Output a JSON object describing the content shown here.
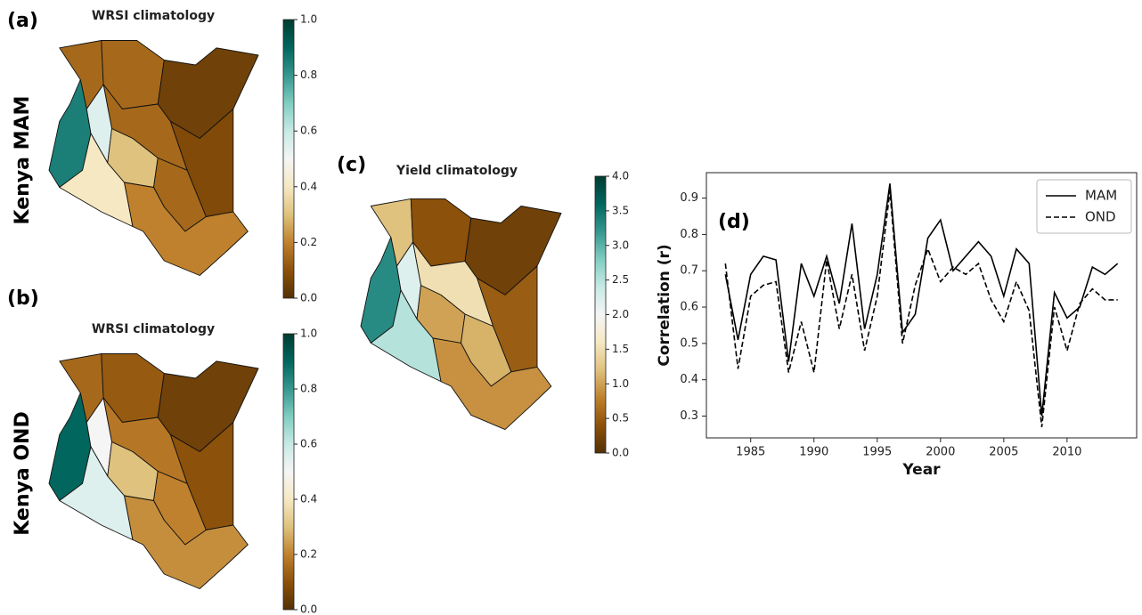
{
  "chart_data": [
    {
      "type": "map",
      "panel_label": "(a)",
      "row_label": "Kenya MAM",
      "title": "WRSI climatology",
      "values": [
        0.15,
        0.15,
        0.05,
        0.08,
        0.15,
        0.85,
        0.55,
        0.4,
        0.3,
        0.15,
        0.2
      ],
      "colorbar_lim": [
        0,
        1
      ],
      "colorbar_ticks": [
        {
          "value": 0,
          "label": "0.0"
        },
        0.2,
        0.4,
        0.6,
        0.8,
        {
          "value": 1,
          "label": "1.0"
        }
      ],
      "colormap": [
        "#543005",
        "#8c510a",
        "#bf812d",
        "#dfc27d",
        "#f6e8c3",
        "#f5f5f5",
        "#c7eae5",
        "#80cdc1",
        "#35978f",
        "#01665e",
        "#003c30"
      ]
    },
    {
      "type": "map",
      "panel_label": "(b)",
      "row_label": "Kenya OND",
      "title": "WRSI climatology",
      "values": [
        0.15,
        0.12,
        0.05,
        0.1,
        0.18,
        0.9,
        0.5,
        0.55,
        0.3,
        0.2,
        0.22
      ],
      "colorbar_lim": [
        0,
        1
      ],
      "colorbar_ticks": [
        {
          "value": 0,
          "label": "0.0"
        },
        0.2,
        0.4,
        0.6,
        0.8,
        {
          "value": 1,
          "label": "1.0"
        }
      ],
      "colormap": [
        "#543005",
        "#8c510a",
        "#bf812d",
        "#dfc27d",
        "#f6e8c3",
        "#f5f5f5",
        "#c7eae5",
        "#80cdc1",
        "#35978f",
        "#01665e",
        "#003c30"
      ]
    },
    {
      "type": "map",
      "panel_label": "(c)",
      "title": "Yield climatology",
      "values": [
        1.2,
        0.4,
        0.2,
        0.5,
        1.5,
        3.3,
        2.2,
        2.5,
        1.0,
        1.1,
        0.9
      ],
      "colorbar_lim": [
        0,
        4
      ],
      "colorbar_ticks": [
        {
          "value": 0,
          "label": "0.0"
        },
        0.5,
        {
          "value": 1,
          "label": "1.0"
        },
        1.5,
        {
          "value": 2,
          "label": "2.0"
        },
        2.5,
        {
          "value": 3,
          "label": "3.0"
        },
        3.5,
        {
          "value": 4,
          "label": "4.0"
        }
      ],
      "colormap": [
        "#543005",
        "#8c510a",
        "#bf812d",
        "#dfc27d",
        "#f6e8c3",
        "#f5f5f5",
        "#c7eae5",
        "#80cdc1",
        "#35978f",
        "#01665e",
        "#003c30"
      ]
    },
    {
      "type": "line",
      "panel_label": "(d)",
      "xlabel": "Year",
      "ylabel": "Correlation (r)",
      "x": [
        1983,
        1984,
        1985,
        1986,
        1987,
        1988,
        1989,
        1990,
        1991,
        1992,
        1993,
        1994,
        1995,
        1996,
        1997,
        1998,
        1999,
        2000,
        2001,
        2002,
        2003,
        2004,
        2005,
        2006,
        2007,
        2008,
        2009,
        2010,
        2011,
        2012,
        2013,
        2014
      ],
      "series": [
        {
          "name": "MAM",
          "color": "#000000",
          "dash": "solid",
          "values": [
            0.69,
            0.51,
            0.69,
            0.74,
            0.73,
            0.45,
            0.72,
            0.63,
            0.74,
            0.61,
            0.83,
            0.54,
            0.69,
            0.94,
            0.53,
            0.58,
            0.79,
            0.84,
            0.7,
            0.74,
            0.78,
            0.74,
            0.63,
            0.76,
            0.72,
            0.3,
            0.64,
            0.57,
            0.6,
            0.71,
            0.69,
            0.72
          ]
        },
        {
          "name": "OND",
          "color": "#000000",
          "dash": "dashed",
          "values": [
            0.72,
            0.43,
            0.63,
            0.66,
            0.67,
            0.42,
            0.56,
            0.42,
            0.73,
            0.54,
            0.69,
            0.48,
            0.63,
            0.92,
            0.5,
            0.66,
            0.76,
            0.67,
            0.71,
            0.69,
            0.72,
            0.62,
            0.56,
            0.67,
            0.59,
            0.27,
            0.6,
            0.48,
            0.61,
            0.65,
            0.62,
            0.62
          ]
        }
      ],
      "xlim": [
        1981.5,
        2015.5
      ],
      "xticks": [
        1985,
        1990,
        1995,
        2000,
        2005,
        2010
      ],
      "ylim": [
        0.24,
        0.97
      ],
      "yticks": [
        0.3,
        0.4,
        0.5,
        0.6,
        0.7,
        0.8,
        0.9
      ],
      "legend": "upper right"
    }
  ]
}
